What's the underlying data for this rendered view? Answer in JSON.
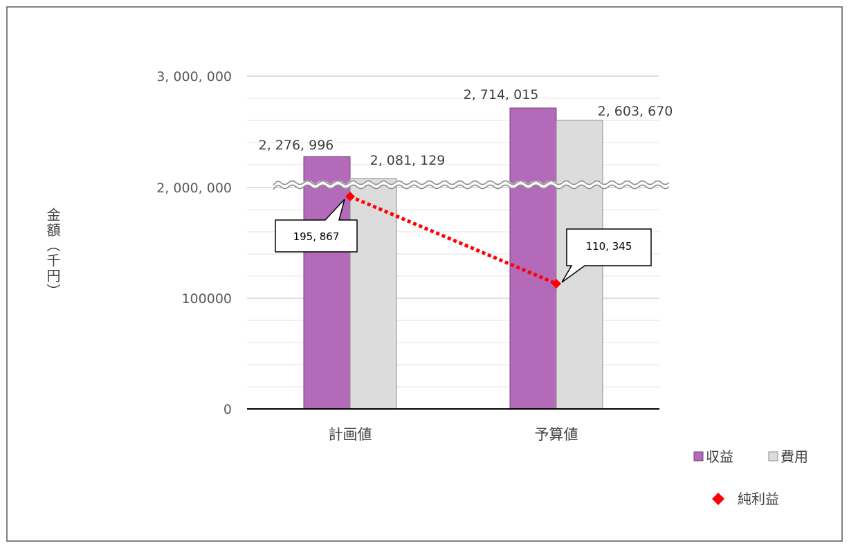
{
  "chart_data": {
    "type": "bar",
    "categories": [
      "計画値",
      "予算値"
    ],
    "series": [
      {
        "name": "収益",
        "values": [
          2276996,
          2714015
        ],
        "color": "#b36bb9",
        "labels": [
          "2, 276, 996",
          "2, 714, 015"
        ]
      },
      {
        "name": "費用",
        "values": [
          2081129,
          2603670
        ],
        "color": "#dcdcdc",
        "labels": [
          "2, 081, 129",
          "2, 603, 670"
        ]
      }
    ],
    "line_series": {
      "name": "純利益",
      "type": "line",
      "style": "dotted",
      "marker": "diamond",
      "color": "#ff0000",
      "values": [
        195867,
        110345
      ],
      "labels": [
        "195, 867",
        "110, 345"
      ]
    },
    "ylabel": "金額（千円）",
    "yticks": [
      "0",
      "100000",
      "2, 000, 000",
      "3, 000, 000"
    ],
    "axis_break": true,
    "grid": true,
    "legend_position": "bottom-right"
  }
}
